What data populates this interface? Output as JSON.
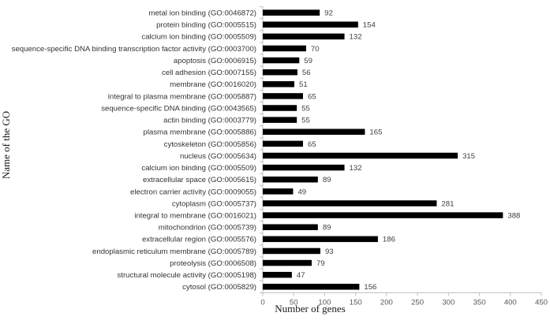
{
  "chart_data": {
    "type": "bar",
    "orientation": "horizontal",
    "title": "",
    "xlabel": "Number of genes",
    "ylabel": "Name of the GO",
    "xlim": [
      0,
      450
    ],
    "xticks": [
      0,
      50,
      100,
      150,
      200,
      250,
      300,
      350,
      400,
      450
    ],
    "grid": false,
    "legend": "none",
    "bar_color": "#000000",
    "categories": [
      "metal ion binding (GO:0046872)",
      "protein binding (GO:0005515)",
      "calcium ion binding (GO:0005509)",
      "sequence-specific DNA binding transcription factor activity (GO:0003700)",
      "apoptosis (GO:0006915)",
      "cell adhesion (GO:0007155)",
      "membrane (GO:0016020)",
      "integral to plasma membrane (GO:0005887)",
      "sequence-specific DNA binding (GO:0043565)",
      "actin binding (GO:0003779)",
      "plasma membrane (GO:0005886)",
      "cytoskeleton (GO:0005856)",
      "nucleus (GO:0005634)",
      "calcium ion binding (GO:0005509)",
      "extracellular space (GO:0005615)",
      "electron carrier activity (GO:0009055)",
      "cytoplasm (GO:0005737)",
      "integral to membrane (GO:0016021)",
      "mitochondrion (GO:0005739)",
      "extracellular region (GO:0005576)",
      "endoplasmic reticulum membrane (GO:0005789)",
      "proteolysis (GO:0006508)",
      "structural molecule activity (GO:0005198)",
      "cytosol (GO:0005829)"
    ],
    "values": [
      92,
      154,
      132,
      70,
      59,
      56,
      51,
      65,
      55,
      55,
      165,
      65,
      315,
      132,
      89,
      49,
      281,
      388,
      89,
      186,
      93,
      79,
      47,
      156
    ]
  }
}
